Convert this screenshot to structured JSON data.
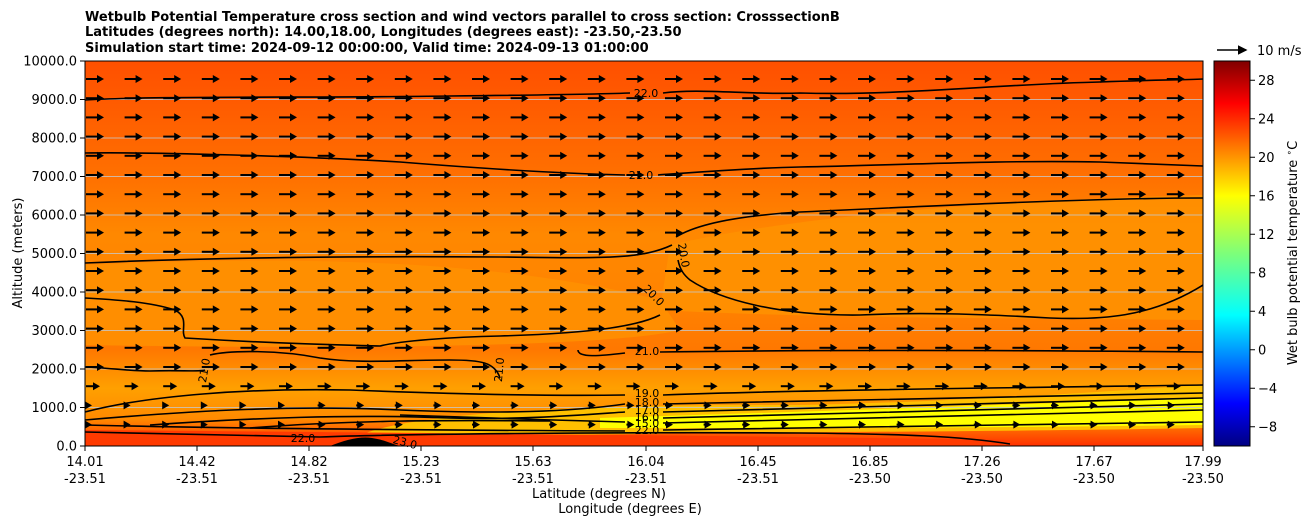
{
  "chart_data": {
    "type": "contour",
    "title_lines": [
      "Wetbulb Potential Temperature cross section and wind vectors parallel to cross section: CrosssectionB",
      "Latitudes (degrees north): 14.00,18.00, Longitudes (degrees east): -23.50,-23.50",
      "Simulation start time: 2024-09-12 00:00:00, Valid time: 2024-09-13 01:00:00"
    ],
    "ylabel": "Altitude (meters)",
    "xlabel_lat": "Latitude (degrees N)",
    "xlabel_lon": "Longitude (degrees E)",
    "ylim": [
      0,
      10000
    ],
    "y_ticks": [
      "0.0",
      "1000.0",
      "2000.0",
      "3000.0",
      "4000.0",
      "5000.0",
      "6000.0",
      "7000.0",
      "8000.0",
      "9000.0",
      "10000.0"
    ],
    "x_ticks_lat": [
      "14.01",
      "14.42",
      "14.82",
      "15.23",
      "15.63",
      "16.04",
      "16.45",
      "16.85",
      "17.26",
      "17.67",
      "17.99"
    ],
    "x_ticks_lon": [
      "-23.51",
      "-23.51",
      "-23.51",
      "-23.51",
      "-23.51",
      "-23.51",
      "-23.51",
      "-23.50",
      "-23.50",
      "-23.50",
      "-23.50"
    ],
    "colorbar": {
      "label": "Wet bulb potential temperature $^\\circ$C",
      "range": [
        -10,
        30
      ],
      "ticks": [
        "−8",
        "−4",
        "0",
        "4",
        "8",
        "12",
        "16",
        "20",
        "24",
        "28"
      ]
    },
    "quiver_key": "10 m/s",
    "contour_labels": [
      "22.0",
      "21.0",
      "20.0",
      "20.0",
      "21.0",
      "21.0",
      "21.0",
      "19.0",
      "18.0",
      "17.0",
      "16.0",
      "15.0",
      "22.0",
      "23.0",
      "22.0"
    ]
  }
}
